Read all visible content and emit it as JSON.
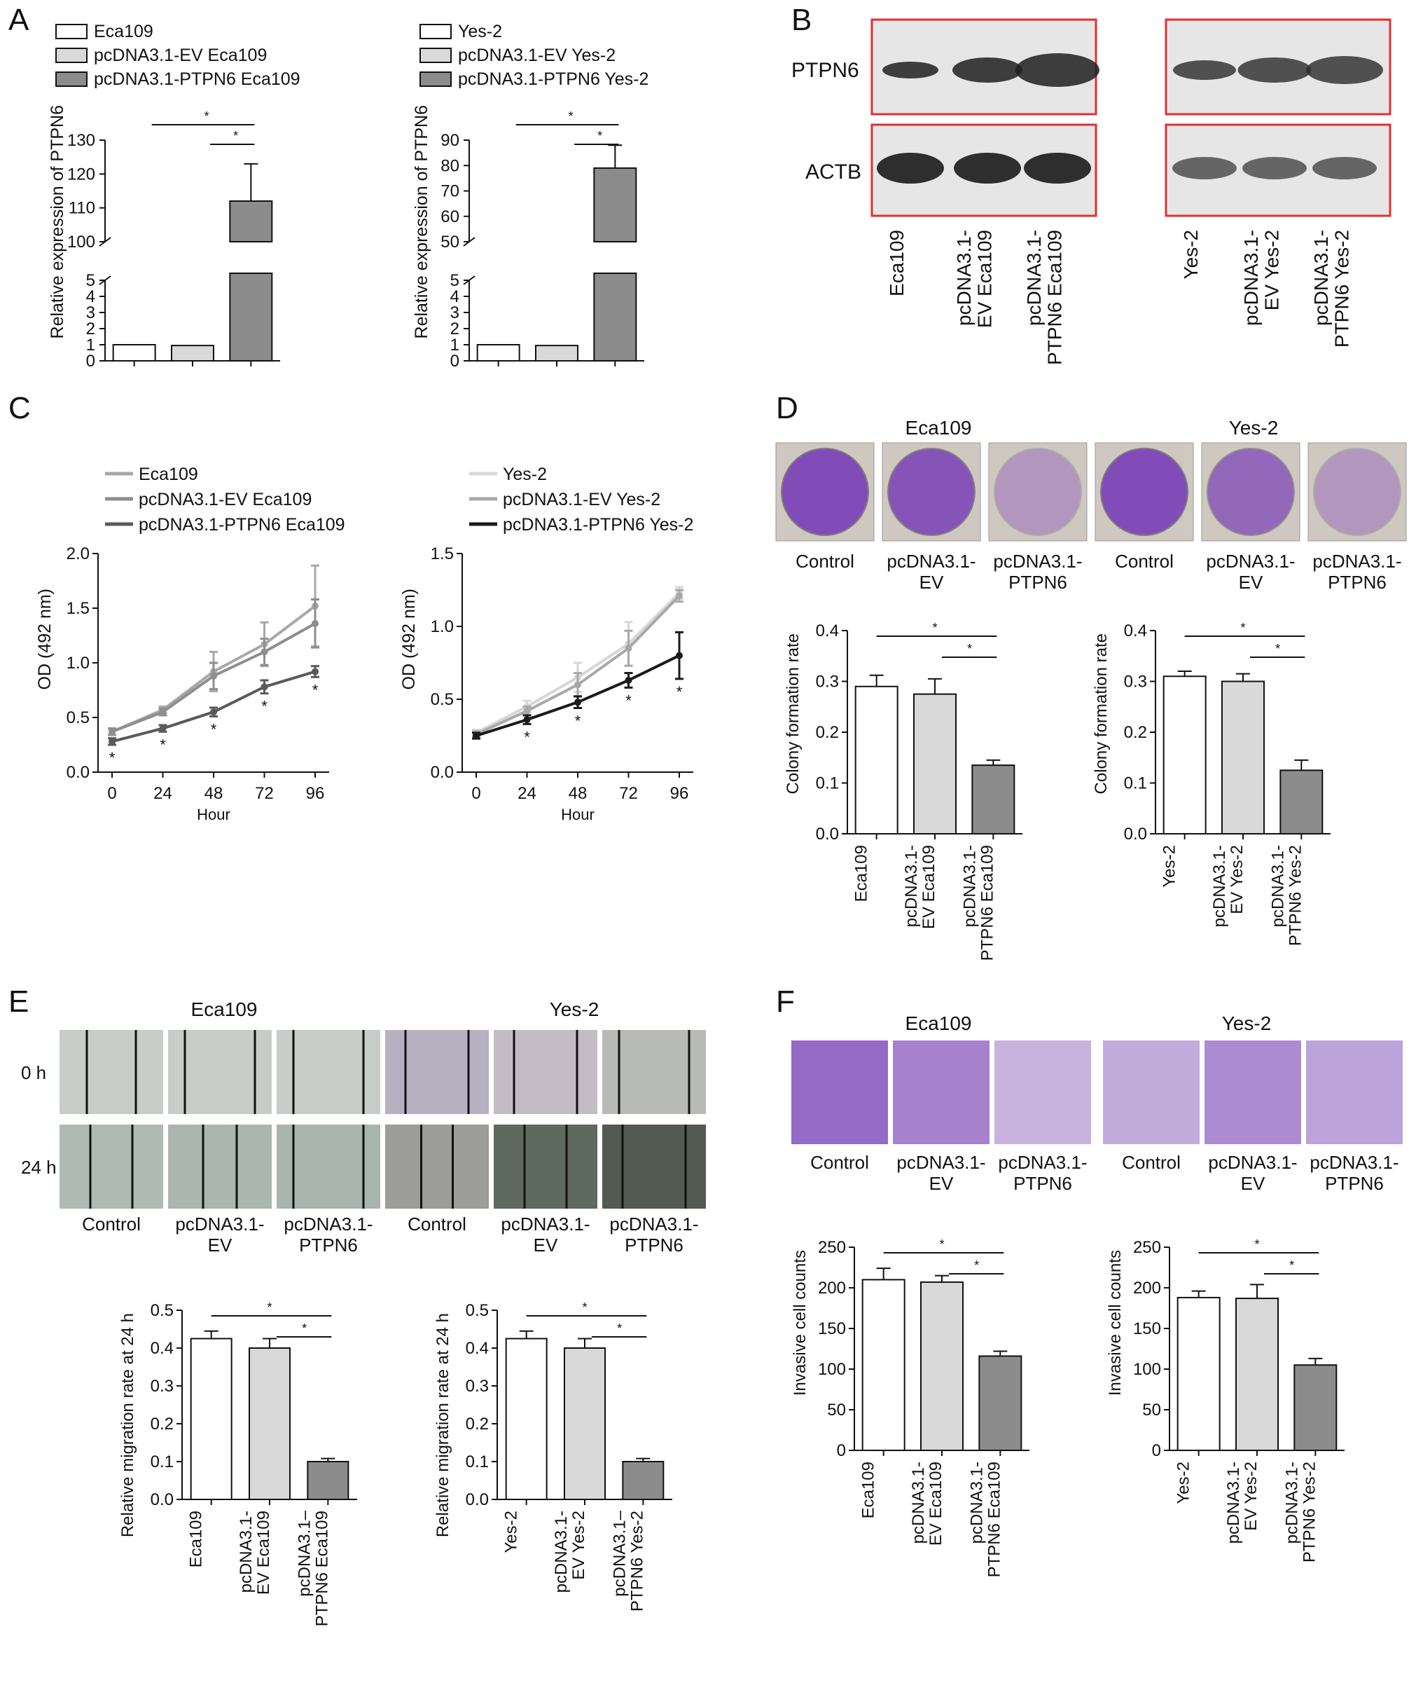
{
  "panel_labels": [
    "A",
    "B",
    "C",
    "D",
    "E",
    "F"
  ],
  "colors": {
    "white": "#ffffff",
    "light": "#d9d9d9",
    "dark": "#8c8c8c",
    "darker": "#5a5a5a",
    "black": "#1a1a1a",
    "box_border": "#e03030",
    "crystal_violet": "#7a3fb8"
  },
  "sig": "*",
  "chart_data": [
    {
      "id": "A-left",
      "type": "bar",
      "legend": [
        "Eca109",
        "pcDNA3.1-EV Eca109",
        "pcDNA3.1-PTPN6 Eca109"
      ],
      "categories": [
        "",
        "",
        ""
      ],
      "values": [
        1,
        0.95,
        112
      ],
      "errors": [
        0,
        0.05,
        11
      ],
      "ylabel": "Relative expression of PTPN6",
      "lower_ticks": [
        "0",
        "1",
        "2",
        "3",
        "4",
        "5"
      ],
      "upper_ticks": [
        "100",
        "110",
        "120",
        "130"
      ],
      "ylim_lower": [
        0,
        5
      ],
      "ylim_upper": [
        100,
        130
      ],
      "broken_axis": true
    },
    {
      "id": "A-right",
      "type": "bar",
      "legend": [
        "Yes-2",
        "pcDNA3.1-EV Yes-2",
        "pcDNA3.1-PTPN6 Yes-2"
      ],
      "categories": [
        "",
        "",
        ""
      ],
      "values": [
        1,
        0.95,
        79
      ],
      "errors": [
        0,
        0.05,
        9
      ],
      "ylabel": "Relative expression of PTPN6",
      "lower_ticks": [
        "0",
        "1",
        "2",
        "3",
        "4",
        "5"
      ],
      "upper_ticks": [
        "50",
        "60",
        "70",
        "80",
        "90"
      ],
      "ylim_lower": [
        0,
        5
      ],
      "ylim_upper": [
        50,
        90
      ],
      "broken_axis": true
    },
    {
      "id": "C-left",
      "type": "line",
      "legend": [
        "Eca109",
        "pcDNA3.1-EV Eca109",
        "pcDNA3.1-PTPN6 Eca109"
      ],
      "x": [
        0,
        24,
        48,
        72,
        96
      ],
      "xticks": [
        "0",
        "24",
        "48",
        "72",
        "96"
      ],
      "yticks": [
        "0.0",
        "0.5",
        "1.0",
        "1.5",
        "2.0"
      ],
      "xlabel": "Hour",
      "ylabel": "OD (492 nm)",
      "ylim": [
        0,
        2.0
      ],
      "series": [
        {
          "name": "Eca109",
          "values": [
            0.37,
            0.57,
            0.92,
            1.17,
            1.52
          ],
          "errors": [
            0.03,
            0.03,
            0.18,
            0.2,
            0.37
          ]
        },
        {
          "name": "pcDNA3.1-EV Eca109",
          "values": [
            0.37,
            0.55,
            0.88,
            1.1,
            1.36
          ],
          "errors": [
            0.03,
            0.03,
            0.12,
            0.12,
            0.22
          ]
        },
        {
          "name": "pcDNA3.1-PTPN6 Eca109",
          "values": [
            0.28,
            0.4,
            0.55,
            0.78,
            0.92
          ],
          "errors": [
            0.03,
            0.03,
            0.04,
            0.06,
            0.05
          ]
        }
      ]
    },
    {
      "id": "C-right",
      "type": "line",
      "legend": [
        "Yes-2",
        "pcDNA3.1-EV Yes-2",
        "pcDNA3.1-PTPN6 Yes-2"
      ],
      "x": [
        0,
        24,
        48,
        72,
        96
      ],
      "xticks": [
        "0",
        "24",
        "48",
        "72",
        "96"
      ],
      "yticks": [
        "0.0",
        "0.5",
        "1.0",
        "1.5"
      ],
      "xlabel": "Hour",
      "ylabel": "OD (492 nm)",
      "ylim": [
        0,
        1.5
      ],
      "series": [
        {
          "name": "Yes-2",
          "values": [
            0.27,
            0.45,
            0.65,
            0.88,
            1.23
          ],
          "errors": [
            0.02,
            0.04,
            0.1,
            0.15,
            0.04
          ]
        },
        {
          "name": "pcDNA3.1-EV Yes-2",
          "values": [
            0.26,
            0.42,
            0.6,
            0.85,
            1.21
          ],
          "errors": [
            0.02,
            0.03,
            0.08,
            0.12,
            0.04
          ]
        },
        {
          "name": "pcDNA3.1-PTPN6 Yes-2",
          "values": [
            0.25,
            0.36,
            0.48,
            0.63,
            0.8
          ],
          "errors": [
            0.02,
            0.03,
            0.04,
            0.05,
            0.16
          ]
        }
      ]
    },
    {
      "id": "D-left",
      "type": "bar",
      "categories": [
        "Eca109",
        "pcDNA3.1-\nEV Eca109",
        "pcDNA3.1-\nPTPN6 Eca109"
      ],
      "values": [
        0.29,
        0.275,
        0.135
      ],
      "errors": [
        0.022,
        0.03,
        0.01
      ],
      "ylabel": "Colony formation rate",
      "yticks": [
        "0.0",
        "0.1",
        "0.2",
        "0.3",
        "0.4"
      ],
      "ylim": [
        0,
        0.4
      ]
    },
    {
      "id": "D-right",
      "type": "bar",
      "categories": [
        "Yes-2",
        "pcDNA3.1-\nEV Yes-2",
        "pcDNA3.1-\nPTPN6 Yes-2"
      ],
      "values": [
        0.31,
        0.3,
        0.125
      ],
      "errors": [
        0.01,
        0.015,
        0.02
      ],
      "ylabel": "Colony formation rate",
      "yticks": [
        "0.0",
        "0.1",
        "0.2",
        "0.3",
        "0.4"
      ],
      "ylim": [
        0,
        0.4
      ]
    },
    {
      "id": "E-left",
      "type": "bar",
      "categories": [
        "Eca109",
        "pcDNA3.1-\nEV Eca109",
        "pcDNA3.1–\nPTPN6 Eca109"
      ],
      "values": [
        0.425,
        0.4,
        0.1
      ],
      "errors": [
        0.02,
        0.025,
        0.008
      ],
      "ylabel": "Relative migration rate at 24 h",
      "yticks": [
        "0.0",
        "0.1",
        "0.2",
        "0.3",
        "0.4",
        "0.5"
      ],
      "ylim": [
        0,
        0.5
      ]
    },
    {
      "id": "E-right",
      "type": "bar",
      "categories": [
        "Yes-2",
        "pcDNA3.1-\nEV Yes-2",
        "pcDNA3.1–\nPTPN6 Yes-2"
      ],
      "values": [
        0.425,
        0.4,
        0.1
      ],
      "errors": [
        0.02,
        0.025,
        0.008
      ],
      "ylabel": "Relative migration rate at 24 h",
      "yticks": [
        "0.0",
        "0.1",
        "0.2",
        "0.3",
        "0.4",
        "0.5"
      ],
      "ylim": [
        0,
        0.5
      ]
    },
    {
      "id": "F-left",
      "type": "bar",
      "categories": [
        "Eca109",
        "pcDNA3.1-\nEV Eca109",
        "pcDNA3.1-\nPTPN6 Eca109"
      ],
      "values": [
        210,
        207,
        116
      ],
      "errors": [
        14,
        8,
        6
      ],
      "ylabel": "Invasive cell counts",
      "yticks": [
        "0",
        "50",
        "100",
        "150",
        "200",
        "250"
      ],
      "ylim": [
        0,
        250
      ]
    },
    {
      "id": "F-right",
      "type": "bar",
      "categories": [
        "Yes-2",
        "pcDNA3.1-\nEV Yes-2",
        "pcDNA3.1-\nPTPN6 Yes-2"
      ],
      "values": [
        188,
        187,
        105
      ],
      "errors": [
        8,
        17,
        8
      ],
      "ylabel": "Invasive cell counts",
      "yticks": [
        "0",
        "50",
        "100",
        "150",
        "200",
        "250"
      ],
      "ylim": [
        0,
        250
      ]
    }
  ],
  "panelB": {
    "rows": [
      "PTPN6",
      "ACTB"
    ],
    "lanes_left": [
      "Eca109",
      "pcDNA3.1-\nEV Eca109",
      "pcDNA3.1-\nPTPN6 Eca109"
    ],
    "lanes_right": [
      "Yes-2",
      "pcDNA3.1-\nEV Yes-2",
      "pcDNA3.1-\nPTPN6 Yes-2"
    ]
  },
  "panelD": {
    "groups": [
      "Eca109",
      "Yes-2"
    ],
    "labels": [
      "Control",
      "pcDNA3.1-\nEV",
      "pcDNA3.1-\nPTPN6",
      "Control",
      "pcDNA3.1-\nEV",
      "pcDNA3.1-\nPTPN6"
    ]
  },
  "panelE": {
    "groups": [
      "Eca109",
      "Yes-2"
    ],
    "rows": [
      "0 h",
      "24 h"
    ],
    "labels": [
      "Control",
      "pcDNA3.1-\nEV",
      "pcDNA3.1-\nPTPN6",
      "Control",
      "pcDNA3.1-\nEV",
      "pcDNA3.1-\nPTPN6"
    ]
  },
  "panelF": {
    "groups": [
      "Eca109",
      "Yes-2"
    ],
    "labels": [
      "Control",
      "pcDNA3.1-\nEV",
      "pcDNA3.1-\nPTPN6",
      "Control",
      "pcDNA3.1-\nEV",
      "pcDNA3.1-\nPTPN6"
    ]
  }
}
